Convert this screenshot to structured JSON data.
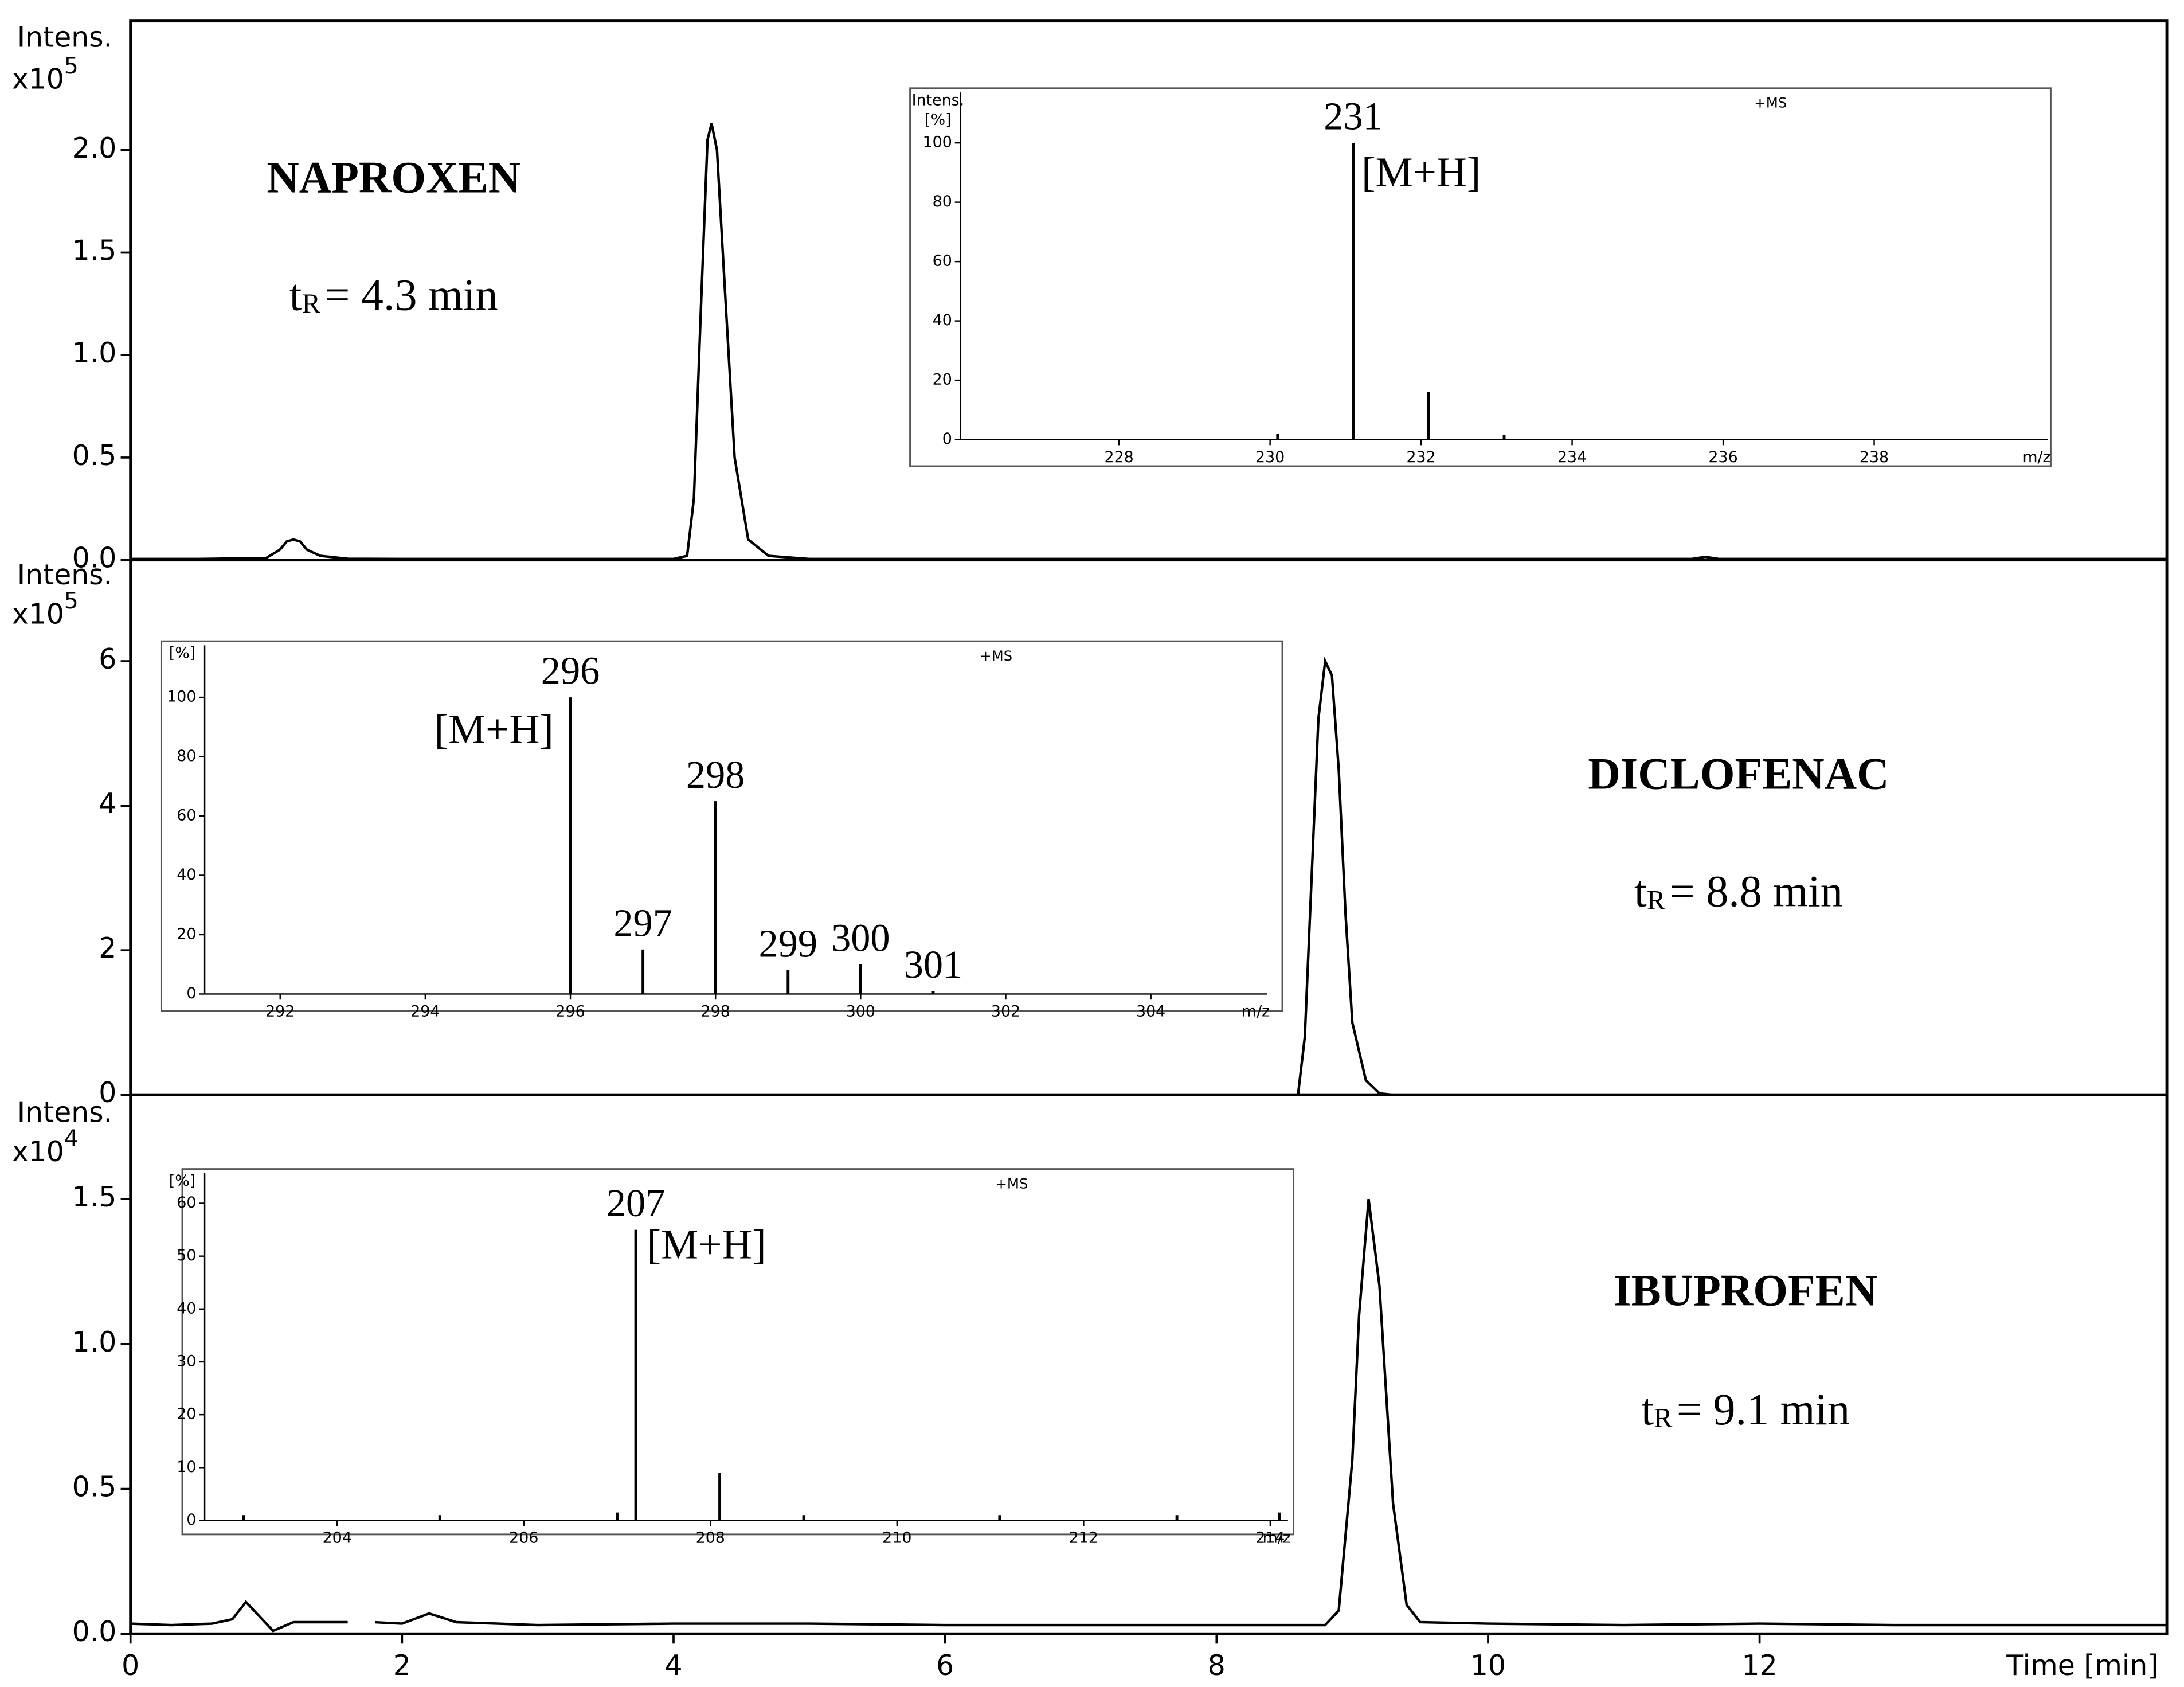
{
  "chart_data": [
    {
      "type": "line",
      "y_label": "Intens.",
      "y_multiplier": "x10",
      "y_exponent": "5",
      "color": "#000000",
      "annotation": {
        "compound": "NAPROXEN",
        "rt_symbol": "t",
        "rt_subscript": "R",
        "rt_text": "= 4.3 min"
      },
      "xlim": [
        0,
        15
      ],
      "ylim": [
        0,
        2.63
      ],
      "yticks": [
        {
          "value": 0,
          "label": "0.0"
        },
        0.5,
        {
          "value": 1,
          "label": "1.0"
        },
        1.5,
        {
          "value": 2,
          "label": "2.0"
        }
      ],
      "x": [
        0,
        0.5,
        1.0,
        1.1,
        1.15,
        1.2,
        1.25,
        1.3,
        1.4,
        1.6,
        2,
        3,
        4.0,
        4.1,
        4.15,
        4.2,
        4.25,
        4.28,
        4.32,
        4.38,
        4.45,
        4.55,
        4.7,
        5,
        6,
        8,
        10,
        11.5,
        11.6,
        11.7,
        13,
        15
      ],
      "values": [
        0.005,
        0.005,
        0.01,
        0.05,
        0.09,
        0.1,
        0.09,
        0.05,
        0.02,
        0.006,
        0.005,
        0.005,
        0.005,
        0.02,
        0.3,
        1.2,
        2.05,
        2.13,
        2.0,
        1.3,
        0.5,
        0.1,
        0.02,
        0.005,
        0.005,
        0.005,
        0.005,
        0.005,
        0.015,
        0.005,
        0.005,
        0.005
      ]
    },
    {
      "type": "bar",
      "y_label": "Intens.",
      "y_unit": "[%]",
      "mode": "+MS",
      "x_label": "m/z",
      "annotation": "[M+H]",
      "color": "#000000",
      "xlim": [
        225.9,
        240.3
      ],
      "xticks": [
        228,
        230,
        232,
        234,
        236,
        238
      ],
      "ylim": [
        0,
        117
      ],
      "yticks": [
        0,
        20,
        40,
        60,
        80,
        100
      ],
      "x": [
        230.1,
        231.1,
        232.1,
        233.1
      ],
      "values": [
        2,
        100,
        16,
        1.5
      ],
      "x_value_labels": [
        null,
        "231",
        null,
        null
      ]
    },
    {
      "type": "line",
      "y_label": "Intens.",
      "y_multiplier": "x10",
      "y_exponent": "5",
      "color": "#000000",
      "annotation": {
        "compound": "DICLOFENAC",
        "rt_symbol": "t",
        "rt_subscript": "R",
        "rt_text": "= 8.8 min"
      },
      "xlim": [
        0,
        15
      ],
      "ylim": [
        0,
        7.4
      ],
      "yticks": [
        0,
        2,
        4,
        6
      ],
      "x": [
        8.6,
        8.65,
        8.7,
        8.75,
        8.8,
        8.85,
        8.9,
        8.95,
        9.0,
        9.1,
        9.2,
        9.3
      ],
      "values": [
        0,
        0.8,
        3,
        5.2,
        6.0,
        5.8,
        4.5,
        2.5,
        1.0,
        0.2,
        0.02,
        0
      ]
    },
    {
      "type": "bar",
      "y_unit": "[%]",
      "mode": "+MS",
      "x_label": "m/z",
      "annotation": "[M+H]",
      "color": "#000000",
      "xlim": [
        290.96,
        305.6
      ],
      "xticks": [
        292,
        294,
        296,
        298,
        300,
        302,
        304
      ],
      "ylim": [
        0,
        117.5
      ],
      "yticks": [
        0,
        20,
        40,
        60,
        80,
        100
      ],
      "x": [
        296,
        297,
        298,
        299,
        300,
        301
      ],
      "values": [
        100,
        15,
        65,
        8,
        10,
        1
      ],
      "x_value_labels": [
        "296",
        "297",
        "298",
        "299",
        "300",
        "301"
      ]
    },
    {
      "type": "line",
      "y_label": "Intens.",
      "y_multiplier": "x10",
      "y_exponent": "4",
      "color": "#000000",
      "annotation": {
        "compound": "IBUPROFEN",
        "rt_symbol": "t",
        "rt_subscript": "R",
        "rt_text": "= 9.1 min"
      },
      "xlim": [
        0,
        15
      ],
      "ylim": [
        0,
        1.86
      ],
      "yticks": [
        {
          "value": 0,
          "label": "0.0"
        },
        0.5,
        {
          "value": 1,
          "label": "1.0"
        },
        1.5
      ],
      "xticks": [
        0,
        2,
        4,
        6,
        8,
        10,
        12
      ],
      "x_label": "Time [min]",
      "x": [
        0,
        0.3,
        0.6,
        0.75,
        0.85,
        0.95,
        1.05,
        1.2,
        1.6,
        1.7,
        1.8,
        2.0,
        2.2,
        2.4,
        3,
        4,
        5,
        6,
        7,
        8,
        8.8,
        8.9,
        9.0,
        9.05,
        9.12,
        9.2,
        9.3,
        9.4,
        9.5,
        10,
        11,
        12,
        13,
        14,
        15
      ],
      "values": [
        0.035,
        0.03,
        0.035,
        0.05,
        0.11,
        0.06,
        0.01,
        0.04,
        0.04,
        null,
        0.04,
        0.035,
        0.07,
        0.04,
        0.03,
        0.035,
        0.035,
        0.03,
        0.03,
        0.03,
        0.03,
        0.08,
        0.6,
        1.1,
        1.5,
        1.2,
        0.45,
        0.1,
        0.04,
        0.035,
        0.03,
        0.035,
        0.03,
        0.03,
        0.03
      ]
    },
    {
      "type": "bar",
      "y_unit": "[%]",
      "mode": "+MS",
      "x_label": "m/z",
      "annotation": "[M+H]",
      "color": "#000000",
      "xlim": [
        202.58,
        214.19
      ],
      "xticks": [
        204,
        206,
        208,
        210,
        212,
        214
      ],
      "ylim": [
        0,
        65.7
      ],
      "yticks": [
        0,
        10,
        20,
        30,
        40,
        50,
        60
      ],
      "x": [
        203.0,
        205.1,
        207.0,
        207.2,
        208.1,
        209.0,
        211.1,
        213.0,
        214.1
      ],
      "values": [
        1,
        1,
        1.5,
        55,
        9,
        1,
        1,
        1,
        1.5
      ],
      "x_value_labels": [
        null,
        null,
        null,
        "207",
        null,
        null,
        null,
        null,
        null
      ]
    }
  ]
}
